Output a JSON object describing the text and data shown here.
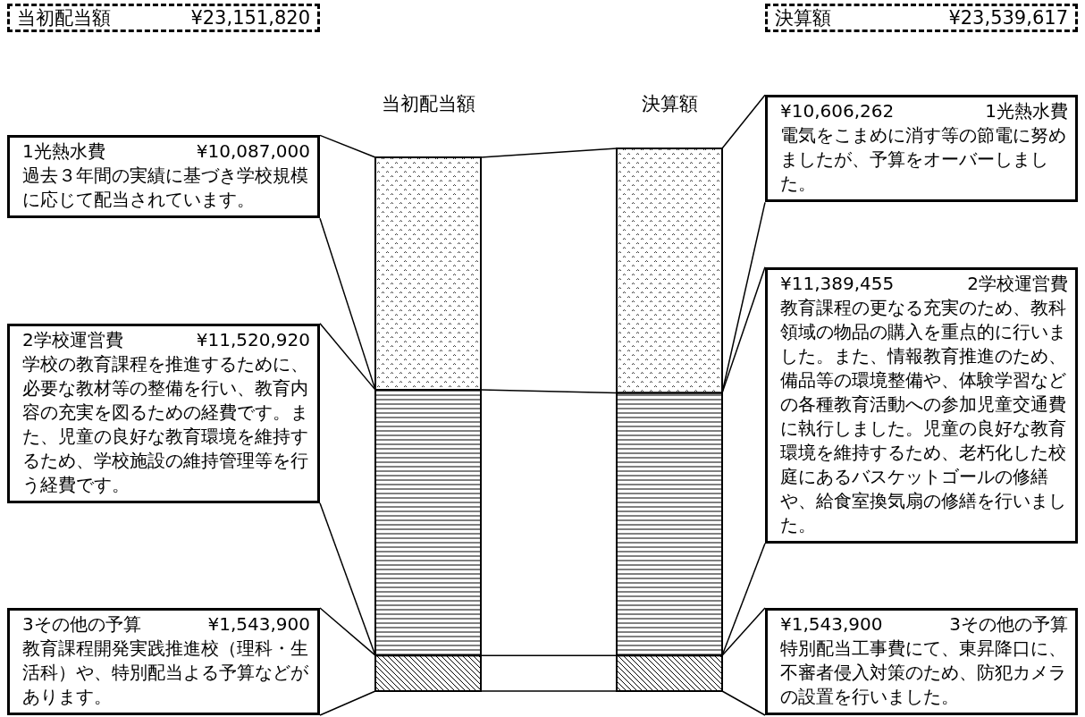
{
  "chart_data": {
    "type": "bar",
    "stacked": true,
    "categories": [
      "当初配当額",
      "決算額"
    ],
    "series": [
      {
        "name": "3その他の予算",
        "color": "#000000",
        "values": [
          1543900,
          1543900
        ],
        "value_labels": [
          "¥1,543,900",
          "¥1,543,900"
        ]
      },
      {
        "name": "2学校運営費",
        "color": "#000000",
        "values": [
          11520920,
          11389455
        ],
        "value_labels": [
          "¥11,520,920",
          "¥11,389,455"
        ]
      },
      {
        "name": "1光熱水費",
        "color": "#000000",
        "values": [
          10087000,
          10606262
        ],
        "value_labels": [
          "¥10,087,000",
          "¥10,606,262"
        ]
      }
    ],
    "annotations": [
      "¥23,151,820",
      "¥23,539,617",
      "過去３年間の実績に基づき学校規模に応じて配当されています。",
      "学校の教育課程を推進するために、必要な教材等の整備を行い、教育内容の充実を図るための経費です。また、児童の良好な教育環境を維持するため、学校施設の維持管理等を行う経費です。",
      "教育課程開発実践推進校（理科・生活科）や、特別配当よる予算などがあります。",
      "電気をこまめに消す等の節電に努めましたが、予算をオーバーしました。",
      "教育課程の更なる充実のため、教科領域の物品の購入を重点的に行いました。また、情報教育推進のため、備品等の環境整備や、体験学習などの各種教育活動への参加児童交通費に執行しました。児童の良好な教育環境を維持するため、老朽化した校庭にあるバスケットゴールの修繕や、給食室換気扇の修繕を行いました。",
      "特別配当工事費にて、東昇降口に、不審者侵入対策のため、防犯カメラの設置を行いました。"
    ]
  }
}
